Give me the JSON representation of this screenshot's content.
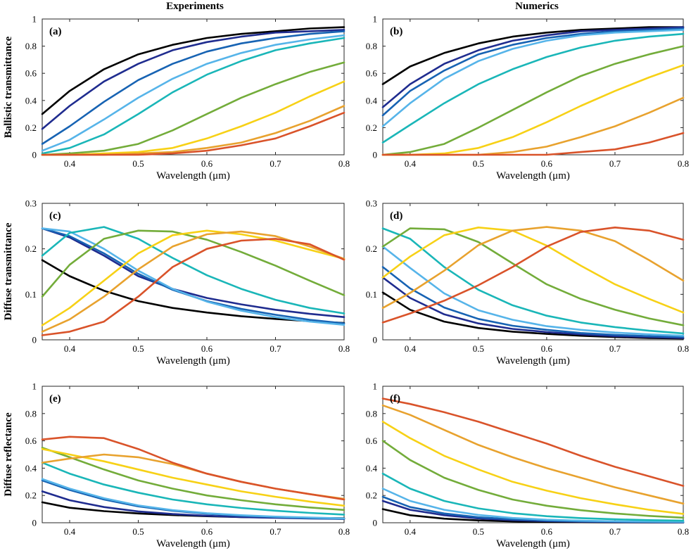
{
  "figure": {
    "column_titles": [
      "Experiments",
      "Numerics"
    ],
    "row_labels": [
      "Ballistic transmittance",
      "Diffuse transmittance",
      "Diffuse reflectance"
    ],
    "series_colors": [
      "#000000",
      "#1f2c8f",
      "#1763b3",
      "#56b4e9",
      "#1ab6b8",
      "#73ac3a",
      "#f7d116",
      "#e8a22e",
      "#d9532a"
    ]
  },
  "chart_data": [
    {
      "type": "line",
      "panel": "(a)",
      "title": "Experiments",
      "xlabel": "Wavelength (μm)",
      "ylabel": "Ballistic transmittance",
      "xlim": [
        0.36,
        0.8
      ],
      "ylim": [
        0,
        1
      ],
      "xticks": [
        0.4,
        0.5,
        0.6,
        0.7,
        0.8
      ],
      "xtick_labels": [
        "0.4",
        "0.5",
        "0.6",
        "0.7",
        "0.8"
      ],
      "yticks": [
        0,
        0.2,
        0.4,
        0.6,
        0.8,
        1
      ],
      "ytick_labels": [
        "0",
        "0.2",
        "0.4",
        "0.6",
        "0.8",
        "1"
      ],
      "x": [
        0.36,
        0.4,
        0.45,
        0.5,
        0.55,
        0.6,
        0.65,
        0.7,
        0.75,
        0.8
      ],
      "series": [
        {
          "color": "#000000",
          "values": [
            0.3,
            0.47,
            0.63,
            0.74,
            0.81,
            0.86,
            0.89,
            0.91,
            0.93,
            0.94
          ]
        },
        {
          "color": "#1f2c8f",
          "values": [
            0.19,
            0.36,
            0.54,
            0.67,
            0.77,
            0.83,
            0.87,
            0.9,
            0.91,
            0.92
          ]
        },
        {
          "color": "#1763b3",
          "values": [
            0.08,
            0.21,
            0.39,
            0.55,
            0.67,
            0.76,
            0.82,
            0.86,
            0.89,
            0.91
          ]
        },
        {
          "color": "#56b4e9",
          "values": [
            0.03,
            0.11,
            0.26,
            0.42,
            0.56,
            0.67,
            0.75,
            0.81,
            0.85,
            0.88
          ]
        },
        {
          "color": "#1ab6b8",
          "values": [
            0.01,
            0.05,
            0.15,
            0.3,
            0.46,
            0.59,
            0.69,
            0.77,
            0.82,
            0.86
          ]
        },
        {
          "color": "#73ac3a",
          "values": [
            0.0,
            0.01,
            0.03,
            0.08,
            0.18,
            0.3,
            0.42,
            0.52,
            0.61,
            0.68
          ]
        },
        {
          "color": "#f7d116",
          "values": [
            0.0,
            0.0,
            0.01,
            0.02,
            0.05,
            0.12,
            0.21,
            0.31,
            0.43,
            0.54
          ]
        },
        {
          "color": "#e8a22e",
          "values": [
            0.0,
            0.0,
            0.0,
            0.01,
            0.02,
            0.05,
            0.09,
            0.16,
            0.25,
            0.36
          ]
        },
        {
          "color": "#d9532a",
          "values": [
            0.0,
            0.0,
            0.0,
            0.0,
            0.01,
            0.03,
            0.07,
            0.12,
            0.21,
            0.31
          ]
        }
      ]
    },
    {
      "type": "line",
      "panel": "(b)",
      "title": "Numerics",
      "xlabel": "Wavelength (μm)",
      "ylabel": "",
      "xlim": [
        0.36,
        0.8
      ],
      "ylim": [
        0,
        1
      ],
      "xticks": [
        0.4,
        0.5,
        0.6,
        0.7,
        0.8
      ],
      "xtick_labels": [
        "0.4",
        "0.5",
        "0.6",
        "0.7",
        "0.8"
      ],
      "yticks": [
        0,
        0.2,
        0.4,
        0.6,
        0.8,
        1
      ],
      "ytick_labels": [
        "0",
        "0.2",
        "0.4",
        "0.6",
        "0.8",
        "1"
      ],
      "x": [
        0.36,
        0.4,
        0.45,
        0.5,
        0.55,
        0.6,
        0.65,
        0.7,
        0.75,
        0.8
      ],
      "series": [
        {
          "color": "#000000",
          "values": [
            0.52,
            0.65,
            0.75,
            0.82,
            0.87,
            0.9,
            0.92,
            0.93,
            0.94,
            0.94
          ]
        },
        {
          "color": "#1f2c8f",
          "values": [
            0.35,
            0.52,
            0.67,
            0.77,
            0.84,
            0.88,
            0.91,
            0.92,
            0.93,
            0.94
          ]
        },
        {
          "color": "#1763b3",
          "values": [
            0.29,
            0.47,
            0.62,
            0.74,
            0.81,
            0.86,
            0.89,
            0.91,
            0.92,
            0.93
          ]
        },
        {
          "color": "#56b4e9",
          "values": [
            0.21,
            0.38,
            0.56,
            0.69,
            0.78,
            0.84,
            0.88,
            0.9,
            0.91,
            0.92
          ]
        },
        {
          "color": "#1ab6b8",
          "values": [
            0.09,
            0.22,
            0.38,
            0.52,
            0.63,
            0.72,
            0.79,
            0.84,
            0.87,
            0.89
          ]
        },
        {
          "color": "#73ac3a",
          "values": [
            0.0,
            0.02,
            0.08,
            0.2,
            0.33,
            0.46,
            0.58,
            0.67,
            0.74,
            0.8
          ]
        },
        {
          "color": "#f7d116",
          "values": [
            0.0,
            0.0,
            0.01,
            0.05,
            0.13,
            0.24,
            0.36,
            0.47,
            0.57,
            0.66
          ]
        },
        {
          "color": "#e8a22e",
          "values": [
            0.0,
            0.0,
            0.0,
            0.0,
            0.02,
            0.06,
            0.13,
            0.21,
            0.31,
            0.42
          ]
        },
        {
          "color": "#d9532a",
          "values": [
            0.0,
            0.0,
            0.0,
            0.0,
            0.0,
            0.0,
            0.02,
            0.04,
            0.09,
            0.16
          ]
        }
      ]
    },
    {
      "type": "line",
      "panel": "(c)",
      "title": "",
      "xlabel": "Wavelength (μm)",
      "ylabel": "Diffuse transmittance",
      "xlim": [
        0.36,
        0.8
      ],
      "ylim": [
        0,
        0.3
      ],
      "xticks": [
        0.4,
        0.5,
        0.6,
        0.7,
        0.8
      ],
      "xtick_labels": [
        "0.4",
        "0.5",
        "0.6",
        "0.7",
        "0.8"
      ],
      "yticks": [
        0,
        0.1,
        0.2,
        0.3
      ],
      "ytick_labels": [
        "0",
        "0.1",
        "0.2",
        "0.3"
      ],
      "x": [
        0.36,
        0.4,
        0.45,
        0.5,
        0.55,
        0.6,
        0.65,
        0.7,
        0.75,
        0.8
      ],
      "series": [
        {
          "color": "#000000",
          "values": [
            0.175,
            0.14,
            0.108,
            0.085,
            0.07,
            0.06,
            0.052,
            0.046,
            0.041,
            0.037
          ]
        },
        {
          "color": "#1f2c8f",
          "values": [
            0.245,
            0.225,
            0.185,
            0.14,
            0.112,
            0.092,
            0.078,
            0.066,
            0.057,
            0.05
          ]
        },
        {
          "color": "#1763b3",
          "values": [
            0.245,
            0.228,
            0.19,
            0.145,
            0.11,
            0.085,
            0.068,
            0.055,
            0.044,
            0.036
          ]
        },
        {
          "color": "#56b4e9",
          "values": [
            0.245,
            0.238,
            0.2,
            0.152,
            0.112,
            0.084,
            0.064,
            0.05,
            0.04,
            0.033
          ]
        },
        {
          "color": "#1ab6b8",
          "values": [
            0.185,
            0.235,
            0.248,
            0.222,
            0.18,
            0.142,
            0.112,
            0.088,
            0.07,
            0.058
          ]
        },
        {
          "color": "#73ac3a",
          "values": [
            0.095,
            0.165,
            0.222,
            0.24,
            0.238,
            0.22,
            0.193,
            0.163,
            0.13,
            0.098
          ]
        },
        {
          "color": "#f7d116",
          "values": [
            0.032,
            0.07,
            0.13,
            0.19,
            0.23,
            0.24,
            0.232,
            0.218,
            0.198,
            0.178
          ]
        },
        {
          "color": "#e8a22e",
          "values": [
            0.018,
            0.045,
            0.095,
            0.155,
            0.205,
            0.232,
            0.238,
            0.228,
            0.205,
            0.178
          ]
        },
        {
          "color": "#d9532a",
          "values": [
            0.01,
            0.018,
            0.04,
            0.095,
            0.16,
            0.2,
            0.218,
            0.222,
            0.21,
            0.176
          ]
        }
      ]
    },
    {
      "type": "line",
      "panel": "(d)",
      "title": "",
      "xlabel": "Wavelength (μm)",
      "ylabel": "",
      "xlim": [
        0.36,
        0.8
      ],
      "ylim": [
        0,
        0.3
      ],
      "xticks": [
        0.4,
        0.5,
        0.6,
        0.7,
        0.8
      ],
      "xtick_labels": [
        "0.4",
        "0.5",
        "0.6",
        "0.7",
        "0.8"
      ],
      "yticks": [
        0,
        0.1,
        0.2,
        0.3
      ],
      "ytick_labels": [
        "0",
        "0.1",
        "0.2",
        "0.3"
      ],
      "x": [
        0.36,
        0.4,
        0.45,
        0.5,
        0.55,
        0.6,
        0.65,
        0.7,
        0.75,
        0.8
      ],
      "series": [
        {
          "color": "#000000",
          "values": [
            0.104,
            0.066,
            0.04,
            0.026,
            0.018,
            0.013,
            0.009,
            0.006,
            0.004,
            0.003
          ]
        },
        {
          "color": "#1f2c8f",
          "values": [
            0.137,
            0.092,
            0.056,
            0.036,
            0.024,
            0.017,
            0.012,
            0.008,
            0.006,
            0.004
          ]
        },
        {
          "color": "#1763b3",
          "values": [
            0.16,
            0.113,
            0.071,
            0.046,
            0.031,
            0.022,
            0.015,
            0.011,
            0.008,
            0.006
          ]
        },
        {
          "color": "#56b4e9",
          "values": [
            0.205,
            0.158,
            0.102,
            0.065,
            0.044,
            0.03,
            0.022,
            0.016,
            0.012,
            0.009
          ]
        },
        {
          "color": "#1ab6b8",
          "values": [
            0.245,
            0.222,
            0.16,
            0.11,
            0.076,
            0.053,
            0.038,
            0.028,
            0.02,
            0.014
          ]
        },
        {
          "color": "#73ac3a",
          "values": [
            0.205,
            0.245,
            0.243,
            0.215,
            0.168,
            0.122,
            0.09,
            0.066,
            0.047,
            0.032
          ]
        },
        {
          "color": "#f7d116",
          "values": [
            0.137,
            0.183,
            0.23,
            0.247,
            0.24,
            0.207,
            0.163,
            0.122,
            0.09,
            0.06
          ]
        },
        {
          "color": "#e8a22e",
          "values": [
            0.07,
            0.103,
            0.152,
            0.208,
            0.24,
            0.248,
            0.24,
            0.217,
            0.175,
            0.13
          ]
        },
        {
          "color": "#d9532a",
          "values": [
            0.038,
            0.058,
            0.086,
            0.12,
            0.16,
            0.205,
            0.237,
            0.247,
            0.24,
            0.22
          ]
        }
      ]
    },
    {
      "type": "line",
      "panel": "(e)",
      "title": "",
      "xlabel": "Wavelength (μm)",
      "ylabel": "Diffuse reflectance",
      "xlim": [
        0.36,
        0.8
      ],
      "ylim": [
        0,
        1
      ],
      "xticks": [
        0.4,
        0.5,
        0.6,
        0.7,
        0.8
      ],
      "xtick_labels": [
        "0.4",
        "0.5",
        "0.6",
        "0.7",
        "0.8"
      ],
      "yticks": [
        0,
        0.2,
        0.4,
        0.6,
        0.8,
        1
      ],
      "ytick_labels": [
        "0",
        "0.2",
        "0.4",
        "0.6",
        "0.8",
        "1"
      ],
      "x": [
        0.36,
        0.4,
        0.45,
        0.5,
        0.55,
        0.6,
        0.65,
        0.7,
        0.75,
        0.8
      ],
      "series": [
        {
          "color": "#000000",
          "values": [
            0.15,
            0.11,
            0.085,
            0.068,
            0.056,
            0.048,
            0.042,
            0.038,
            0.035,
            0.033
          ]
        },
        {
          "color": "#1f2c8f",
          "values": [
            0.23,
            0.165,
            0.115,
            0.083,
            0.064,
            0.051,
            0.042,
            0.036,
            0.031,
            0.028
          ]
        },
        {
          "color": "#1763b3",
          "values": [
            0.31,
            0.24,
            0.17,
            0.12,
            0.088,
            0.066,
            0.051,
            0.041,
            0.034,
            0.029
          ]
        },
        {
          "color": "#56b4e9",
          "values": [
            0.32,
            0.25,
            0.18,
            0.127,
            0.093,
            0.07,
            0.055,
            0.045,
            0.038,
            0.032
          ]
        },
        {
          "color": "#1ab6b8",
          "values": [
            0.44,
            0.36,
            0.28,
            0.22,
            0.17,
            0.135,
            0.108,
            0.088,
            0.072,
            0.06
          ]
        },
        {
          "color": "#73ac3a",
          "values": [
            0.55,
            0.48,
            0.39,
            0.31,
            0.25,
            0.2,
            0.165,
            0.135,
            0.112,
            0.094
          ]
        },
        {
          "color": "#f7d116",
          "values": [
            0.54,
            0.5,
            0.45,
            0.39,
            0.33,
            0.28,
            0.23,
            0.19,
            0.155,
            0.125
          ]
        },
        {
          "color": "#e8a22e",
          "values": [
            0.44,
            0.47,
            0.5,
            0.48,
            0.43,
            0.36,
            0.3,
            0.25,
            0.21,
            0.175
          ]
        },
        {
          "color": "#d9532a",
          "values": [
            0.61,
            0.63,
            0.62,
            0.54,
            0.44,
            0.36,
            0.3,
            0.25,
            0.21,
            0.17
          ]
        }
      ]
    },
    {
      "type": "line",
      "panel": "(f)",
      "title": "",
      "xlabel": "Wavelength (μm)",
      "ylabel": "",
      "xlim": [
        0.36,
        0.8
      ],
      "ylim": [
        0,
        1
      ],
      "xticks": [
        0.4,
        0.5,
        0.6,
        0.7,
        0.8
      ],
      "xtick_labels": [
        "0.4",
        "0.5",
        "0.6",
        "0.7",
        "0.8"
      ],
      "yticks": [
        0,
        0.2,
        0.4,
        0.6,
        0.8,
        1
      ],
      "ytick_labels": [
        "0",
        "0.2",
        "0.4",
        "0.6",
        "0.8",
        "1"
      ],
      "x": [
        0.36,
        0.4,
        0.45,
        0.5,
        0.55,
        0.6,
        0.65,
        0.7,
        0.75,
        0.8
      ],
      "series": [
        {
          "color": "#000000",
          "values": [
            0.1,
            0.055,
            0.03,
            0.017,
            0.01,
            0.006,
            0.004,
            0.003,
            0.002,
            0.002
          ]
        },
        {
          "color": "#1f2c8f",
          "values": [
            0.16,
            0.095,
            0.055,
            0.032,
            0.019,
            0.012,
            0.008,
            0.005,
            0.004,
            0.003
          ]
        },
        {
          "color": "#1763b3",
          "values": [
            0.19,
            0.115,
            0.068,
            0.04,
            0.025,
            0.016,
            0.011,
            0.008,
            0.006,
            0.005
          ]
        },
        {
          "color": "#56b4e9",
          "values": [
            0.25,
            0.16,
            0.095,
            0.057,
            0.035,
            0.022,
            0.015,
            0.011,
            0.008,
            0.006
          ]
        },
        {
          "color": "#1ab6b8",
          "values": [
            0.36,
            0.25,
            0.16,
            0.105,
            0.07,
            0.048,
            0.034,
            0.025,
            0.019,
            0.015
          ]
        },
        {
          "color": "#73ac3a",
          "values": [
            0.6,
            0.46,
            0.33,
            0.24,
            0.17,
            0.125,
            0.092,
            0.068,
            0.05,
            0.037
          ]
        },
        {
          "color": "#f7d116",
          "values": [
            0.74,
            0.62,
            0.49,
            0.39,
            0.3,
            0.235,
            0.18,
            0.135,
            0.095,
            0.065
          ]
        },
        {
          "color": "#e8a22e",
          "values": [
            0.86,
            0.79,
            0.68,
            0.57,
            0.48,
            0.4,
            0.33,
            0.26,
            0.2,
            0.14
          ]
        },
        {
          "color": "#d9532a",
          "values": [
            0.91,
            0.87,
            0.81,
            0.74,
            0.66,
            0.58,
            0.49,
            0.41,
            0.34,
            0.27
          ]
        }
      ]
    }
  ]
}
